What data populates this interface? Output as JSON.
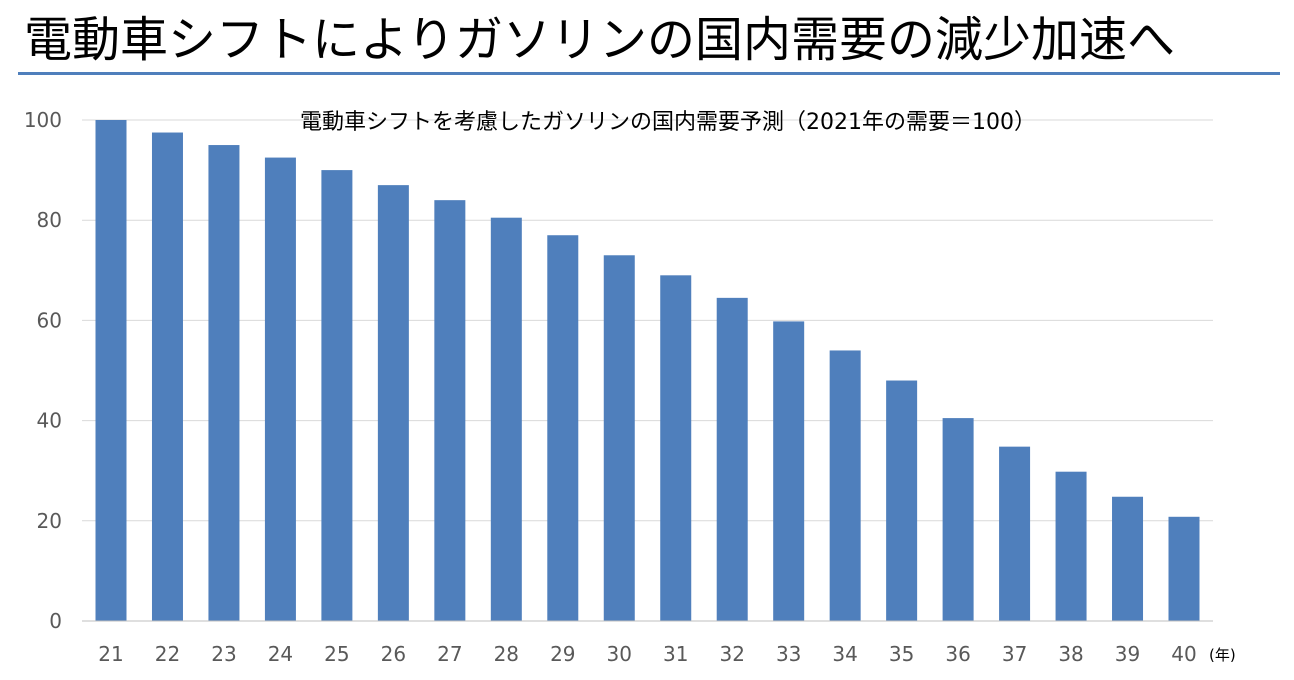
{
  "page": {
    "title": "電動車シフトによりガソリンの国内需要の減少加速へ"
  },
  "colors": {
    "bar": "#4f7fbc",
    "title_rule": "#4f7fbc",
    "gridline": "#d9d9d9",
    "tick_text": "#595959"
  },
  "chart_data": {
    "type": "bar",
    "title": "電動車シフトを考慮したガソリンの国内需要予測（2021年の需要＝100）",
    "x_unit": "(年)",
    "categories": [
      "21",
      "22",
      "23",
      "24",
      "25",
      "26",
      "27",
      "28",
      "29",
      "30",
      "31",
      "32",
      "33",
      "34",
      "35",
      "36",
      "37",
      "38",
      "39",
      "40"
    ],
    "values": [
      100,
      97.5,
      95,
      92.5,
      90,
      87,
      84,
      80.5,
      77,
      73,
      69,
      64.5,
      59.8,
      54,
      48,
      40.5,
      34.8,
      29.8,
      24.8,
      20.8
    ],
    "ylim": [
      0,
      100
    ],
    "yticks": [
      0,
      20,
      40,
      60,
      80,
      100
    ],
    "grid": true,
    "legend": "none"
  }
}
